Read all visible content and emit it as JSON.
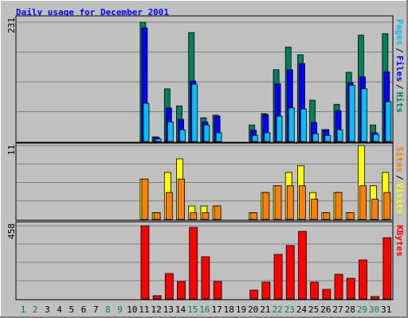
{
  "chart_data": [
    {
      "type": "bar",
      "title": "Daily usage for December 2001",
      "ylim": [
        0,
        231
      ],
      "yticks": [
        231
      ],
      "legend_separator": "/",
      "series": [
        {
          "name": "Hits",
          "color": "#00805c",
          "values": [
            0,
            0,
            0,
            0,
            0,
            0,
            0,
            0,
            0,
            0,
            231,
            9,
            102,
            69,
            211,
            46,
            51,
            0,
            0,
            32,
            54,
            139,
            183,
            168,
            80,
            23,
            72,
            134,
            206,
            32,
            209
          ]
        },
        {
          "name": "Files",
          "color": "#0000ff",
          "values": [
            0,
            0,
            0,
            0,
            0,
            0,
            0,
            0,
            0,
            0,
            220,
            8,
            65,
            43,
            117,
            38,
            49,
            0,
            0,
            22,
            52,
            112,
            139,
            151,
            37,
            23,
            60,
            114,
            125,
            17,
            135
          ]
        },
        {
          "name": "Pages",
          "color": "#00c0ff",
          "values": [
            0,
            0,
            0,
            0,
            0,
            0,
            0,
            0,
            0,
            0,
            74,
            5,
            38,
            23,
            111,
            32,
            17,
            0,
            0,
            12,
            17,
            49,
            65,
            63,
            15,
            12,
            23,
            109,
            102,
            14,
            77
          ]
        }
      ]
    },
    {
      "type": "bar",
      "ylim": [
        0,
        11
      ],
      "yticks": [
        11
      ],
      "legend_separator": "/",
      "series": [
        {
          "name": "Visits",
          "color": "#ffff00",
          "values": [
            0,
            0,
            0,
            0,
            0,
            0,
            0,
            0,
            0,
            0,
            6,
            1,
            7,
            9,
            2,
            2,
            2,
            0,
            0,
            1,
            4,
            5,
            7,
            8,
            4,
            1,
            4,
            1,
            11,
            5,
            7
          ]
        },
        {
          "name": "Sites",
          "color": "#ff8000",
          "values": [
            0,
            0,
            0,
            0,
            0,
            0,
            0,
            0,
            0,
            0,
            6,
            1,
            4,
            6,
            1,
            1,
            2,
            0,
            0,
            1,
            4,
            5,
            5,
            5,
            3,
            1,
            4,
            1,
            5,
            3,
            4
          ]
        }
      ]
    },
    {
      "type": "bar",
      "ylim": [
        0,
        458
      ],
      "yticks": [
        458
      ],
      "categories": [
        "1",
        "2",
        "3",
        "4",
        "5",
        "6",
        "7",
        "8",
        "9",
        "10",
        "11",
        "12",
        "13",
        "14",
        "15",
        "16",
        "17",
        "18",
        "19",
        "20",
        "21",
        "22",
        "23",
        "24",
        "25",
        "26",
        "27",
        "28",
        "29",
        "30",
        "31"
      ],
      "category_colors": [
        "#00805c",
        "#00805c",
        "#000000",
        "#000000",
        "#000000",
        "#000000",
        "#000000",
        "#00805c",
        "#00805c",
        "#000000",
        "#000000",
        "#000000",
        "#000000",
        "#000000",
        "#00805c",
        "#00805c",
        "#000000",
        "#000000",
        "#000000",
        "#000000",
        "#000000",
        "#00805c",
        "#00805c",
        "#000000",
        "#000000",
        "#000000",
        "#000000",
        "#000000",
        "#00805c",
        "#00805c",
        "#000000"
      ],
      "series": [
        {
          "name": "KBytes",
          "color": "#ff0000",
          "values": [
            0,
            0,
            0,
            0,
            0,
            0,
            0,
            0,
            0,
            0,
            458,
            20,
            159,
            109,
            448,
            264,
            109,
            0,
            0,
            55,
            105,
            279,
            334,
            423,
            105,
            60,
            154,
            129,
            244,
            15,
            383
          ]
        }
      ]
    }
  ]
}
